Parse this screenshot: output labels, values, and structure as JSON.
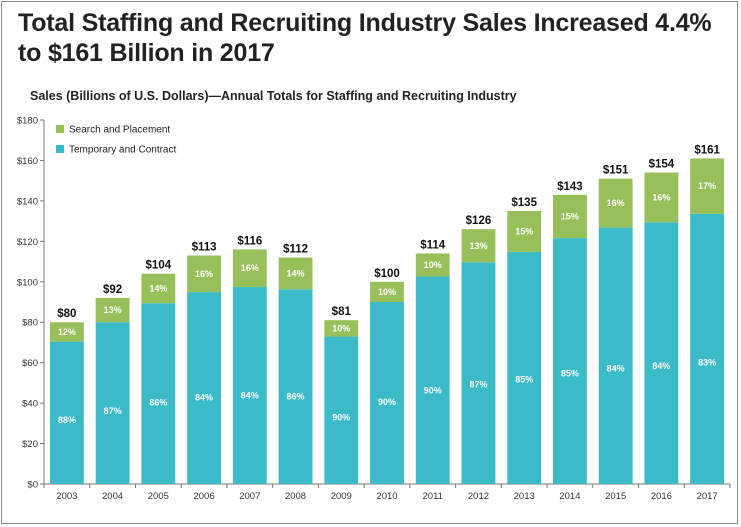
{
  "chart_data": {
    "type": "bar",
    "stacked": true,
    "title": "Total Staffing and Recruiting Industry Sales Increased 4.4% to $161 Billion in 2017",
    "subtitle": "Sales (Billions of U.S. Dollars)—Annual Totals for Staffing and Recruiting Industry",
    "xlabel": "",
    "ylabel": "",
    "ylim": [
      0,
      180
    ],
    "yticks": [
      0,
      20,
      40,
      60,
      80,
      100,
      120,
      140,
      160,
      180
    ],
    "ytick_labels": [
      "$0",
      "$20",
      "$40",
      "$60",
      "$80",
      "$100",
      "$120",
      "$140",
      "$160",
      "$180"
    ],
    "grid": false,
    "legend_position": "top-left",
    "categories": [
      "2003",
      "2004",
      "2005",
      "2006",
      "2007",
      "2008",
      "2009",
      "2010",
      "2011",
      "2012",
      "2013",
      "2014",
      "2015",
      "2016",
      "2017"
    ],
    "totals": [
      80,
      92,
      104,
      113,
      116,
      112,
      81,
      100,
      114,
      126,
      135,
      143,
      151,
      154,
      161
    ],
    "total_labels": [
      "$80",
      "$92",
      "$104",
      "$113",
      "$116",
      "$112",
      "$81",
      "$100",
      "$114",
      "$126",
      "$135",
      "$143",
      "$151",
      "$154",
      "$161"
    ],
    "series": [
      {
        "name": "Temporary and Contract",
        "color": "#3bbac8",
        "percent_labels": [
          "88%",
          "87%",
          "86%",
          "84%",
          "84%",
          "86%",
          "90%",
          "90%",
          "90%",
          "87%",
          "85%",
          "85%",
          "84%",
          "84%",
          "83%"
        ],
        "values": [
          70.4,
          80.0,
          89.4,
          94.9,
          97.4,
          96.3,
          72.9,
          90.0,
          102.6,
          109.6,
          114.8,
          121.6,
          126.8,
          129.4,
          133.6
        ]
      },
      {
        "name": "Search and Placement",
        "color": "#98c05a",
        "percent_labels": [
          "12%",
          "13%",
          "14%",
          "16%",
          "16%",
          "14%",
          "10%",
          "10%",
          "10%",
          "13%",
          "15%",
          "15%",
          "16%",
          "16%",
          "17%"
        ],
        "values": [
          9.6,
          12.0,
          14.6,
          18.1,
          18.6,
          15.7,
          8.1,
          10.0,
          11.4,
          16.4,
          20.2,
          21.4,
          24.2,
          24.6,
          27.4
        ]
      }
    ],
    "legend": [
      "Search and Placement",
      "Temporary and Contract"
    ]
  }
}
